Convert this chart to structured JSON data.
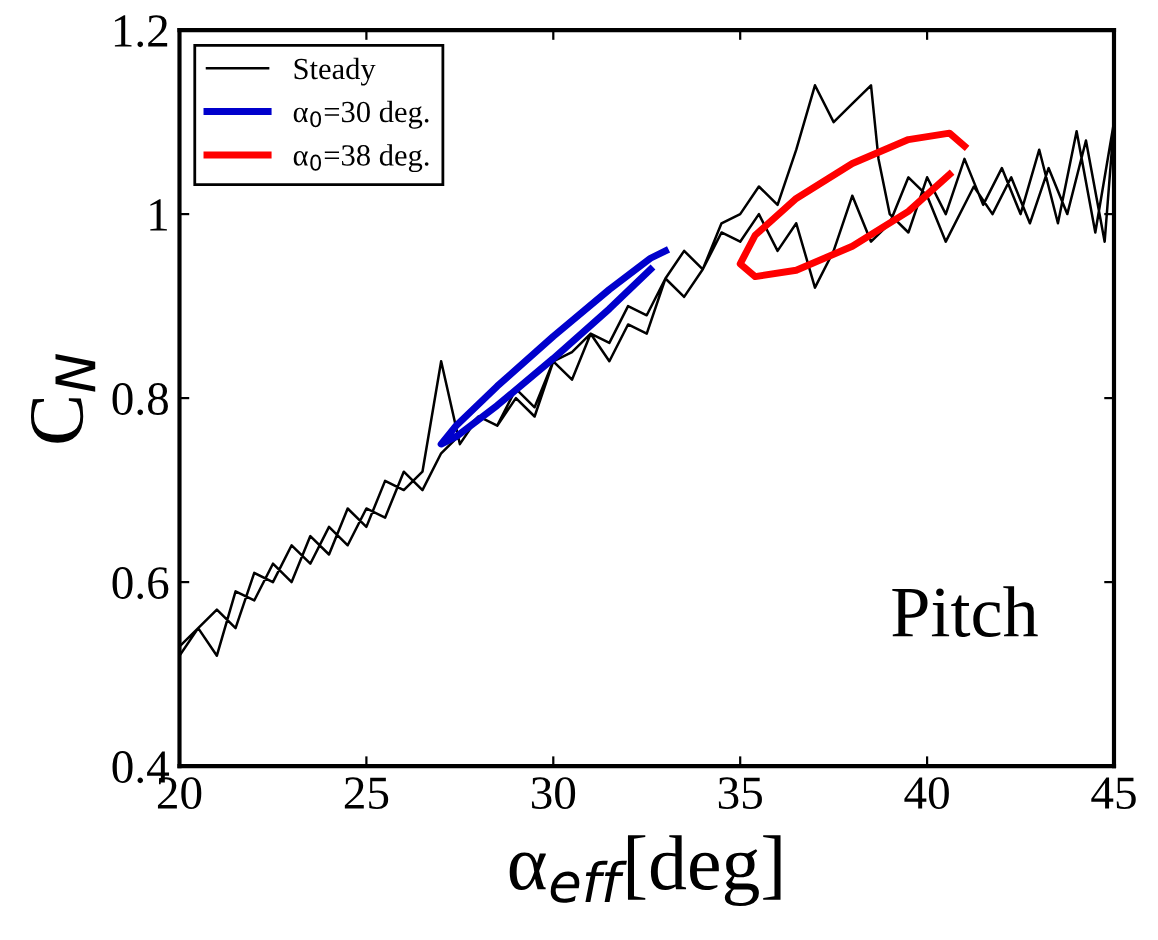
{
  "chart_data": {
    "type": "line",
    "xlabel": "α$_{eff}$[deg]",
    "ylabel": "C$_{N}$",
    "xlim": [
      20,
      45
    ],
    "xticks": [
      20,
      25,
      30,
      35,
      40,
      45
    ],
    "ylim": [
      0.4,
      1.2
    ],
    "yticks": [
      0.4,
      0.6,
      0.8,
      1,
      1.2
    ],
    "grid": false,
    "legend": "top left",
    "marker": "none",
    "annotations": [
      "Pitch"
    ],
    "series": [
      {
        "name": "Steady",
        "color": "#000000",
        "x": [
          20,
          20.5,
          21,
          21.5,
          22,
          22.5,
          23,
          23.5,
          24,
          24.5,
          25,
          25.5,
          26,
          26.5,
          27,
          27.5,
          28,
          28.5,
          29,
          29.5,
          30,
          30.5,
          31,
          31.5,
          32,
          32.5,
          33,
          33.5,
          34,
          34.5,
          35,
          35.5,
          36,
          36.5,
          37,
          37.5,
          38,
          38.5,
          38.7,
          39,
          39.5,
          40,
          40.5,
          41,
          41.5,
          42,
          42.5,
          43,
          43.5,
          44,
          44.5,
          45,
          44.75,
          44.25,
          43.75,
          43.25,
          42.75,
          42.25,
          41.75,
          41.25,
          40.5,
          40,
          39.5,
          39,
          38.5,
          38,
          37.5,
          37,
          36.5,
          36,
          35.5,
          35,
          34.5,
          34,
          33.5,
          33,
          32.5,
          32,
          31.5,
          31,
          30.5,
          30,
          29.5,
          29,
          28.5,
          28,
          27.5,
          27,
          26.5,
          26,
          25.5,
          25,
          24.5,
          24,
          23.5,
          23,
          22.5,
          22,
          21.5,
          21,
          20.5,
          20
        ],
        "values": [
          0.52,
          0.55,
          0.57,
          0.55,
          0.61,
          0.6,
          0.64,
          0.62,
          0.66,
          0.64,
          0.68,
          0.67,
          0.72,
          0.7,
          0.74,
          0.76,
          0.78,
          0.77,
          0.81,
          0.79,
          0.84,
          0.85,
          0.87,
          0.86,
          0.9,
          0.89,
          0.93,
          0.96,
          0.94,
          0.99,
          1.0,
          1.03,
          1.01,
          1.07,
          1.14,
          1.1,
          1.12,
          1.14,
          1.06,
          1.0,
          0.98,
          1.04,
          1.0,
          1.06,
          1.01,
          1.05,
          1.0,
          1.07,
          0.99,
          1.09,
          0.98,
          1.1,
          0.97,
          1.08,
          1.0,
          1.05,
          0.99,
          1.04,
          1.0,
          1.03,
          0.97,
          1.02,
          1.04,
          0.99,
          0.97,
          1.02,
          0.96,
          0.92,
          0.99,
          0.96,
          1.0,
          0.97,
          0.98,
          0.94,
          0.91,
          0.93,
          0.87,
          0.88,
          0.84,
          0.87,
          0.82,
          0.84,
          0.78,
          0.8,
          0.77,
          0.78,
          0.75,
          0.84,
          0.72,
          0.7,
          0.71,
          0.66,
          0.68,
          0.63,
          0.65,
          0.6,
          0.62,
          0.58,
          0.59,
          0.52,
          0.55,
          0.53
        ]
      },
      {
        "name": "α$_{0}$=30 deg.",
        "color": "#0000cc",
        "x": [
          33.0,
          32.6,
          31.5,
          30.0,
          28.5,
          27.4,
          27.0,
          27.4,
          28.5,
          30.0,
          31.5,
          32.6
        ],
        "values": [
          0.96,
          0.952,
          0.918,
          0.867,
          0.813,
          0.77,
          0.75,
          0.758,
          0.792,
          0.843,
          0.897,
          0.94
        ]
      },
      {
        "name": "α$_{0}$=38 deg.",
        "color": "#ff0000",
        "x": [
          41.0,
          40.6,
          39.5,
          38.0,
          36.5,
          35.4,
          35.0,
          35.4,
          36.5,
          38.0,
          39.5,
          40.6
        ],
        "values": [
          1.074,
          1.088,
          1.081,
          1.055,
          1.017,
          0.977,
          0.946,
          0.932,
          0.939,
          0.965,
          1.003,
          1.043
        ]
      }
    ]
  }
}
